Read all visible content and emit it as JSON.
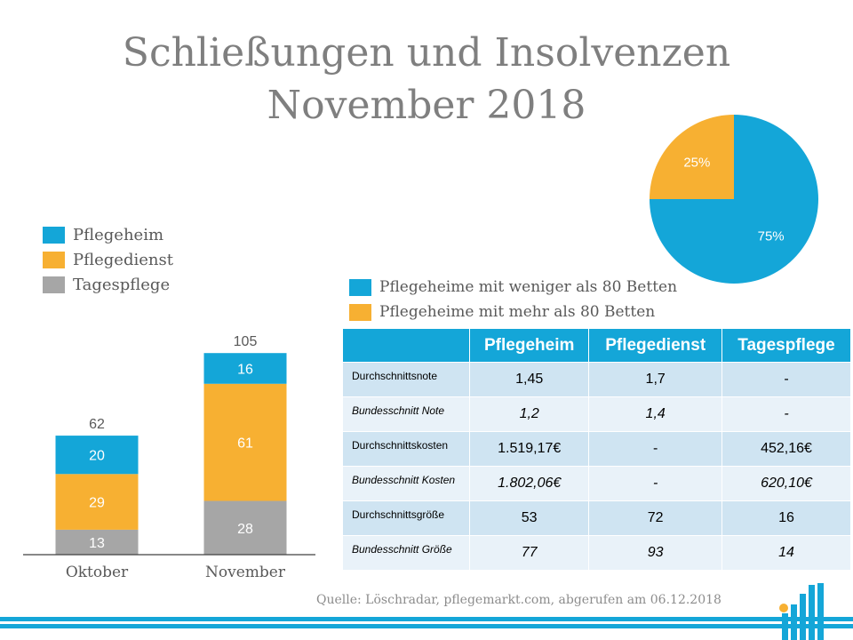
{
  "title_line1": "Schließungen und Insolvenzen",
  "title_line2": "November 2018",
  "colors": {
    "pflegeheim": "#14a6d8",
    "pflegedienst": "#f7b032",
    "tagespflege": "#a6a6a6",
    "table_header": "#14a6d8"
  },
  "bar_legend": [
    "Pflegeheim",
    "Pflegedienst",
    "Tagespflege"
  ],
  "pie_legend": [
    "Pflegeheime mit weniger als 80 Betten",
    "Pflegeheime mit mehr als 80 Betten"
  ],
  "chart_data": [
    {
      "type": "bar",
      "stacked": true,
      "categories": [
        "Oktober",
        "November"
      ],
      "series": [
        {
          "name": "Tagespflege",
          "values": [
            13,
            28
          ]
        },
        {
          "name": "Pflegedienst",
          "values": [
            29,
            61
          ]
        },
        {
          "name": "Pflegeheim",
          "values": [
            20,
            16
          ]
        }
      ],
      "totals": [
        62,
        105
      ],
      "legend_position": "top-left"
    },
    {
      "type": "pie",
      "categories": [
        "Pflegeheime mit weniger als 80 Betten",
        "Pflegeheime mit mehr als 80 Betten"
      ],
      "values": [
        75,
        25
      ],
      "labels": [
        "75%",
        "25%"
      ]
    }
  ],
  "table": {
    "headers": [
      "",
      "Pflegeheim",
      "Pflegedienst",
      "Tagespflege"
    ],
    "rows": [
      {
        "label": "Durchschnittsnote",
        "values": [
          "1,45",
          "1,7",
          "-"
        ],
        "italic": false
      },
      {
        "label": "Bundesschnitt Note",
        "values": [
          "1,2",
          "1,4",
          "-"
        ],
        "italic": true
      },
      {
        "label": "Durchschnittskosten",
        "values": [
          "1.519,17€",
          "-",
          "452,16€"
        ],
        "italic": false
      },
      {
        "label": "Bundesschnitt Kosten",
        "values": [
          "1.802,06€",
          "-",
          "620,10€"
        ],
        "italic": true
      },
      {
        "label": "Durchschnittsgröße",
        "values": [
          "53",
          "72",
          "16"
        ],
        "italic": false
      },
      {
        "label": "Bundesschnitt Größe",
        "values": [
          "77",
          "93",
          "14"
        ],
        "italic": true
      }
    ]
  },
  "source": "Quelle: Löschradar, pflegemarkt.com, abgerufen am 06.12.2018"
}
